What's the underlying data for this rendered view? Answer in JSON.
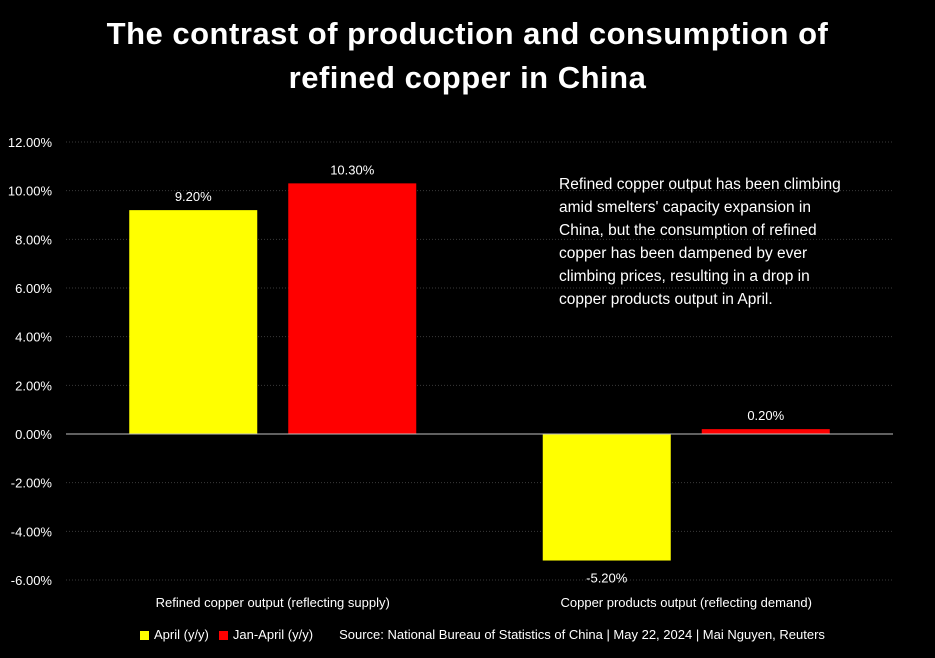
{
  "title_line1": "The contrast of production and consumption of",
  "title_line2": "refined copper in China",
  "annotation": "Refined copper output has been climbing amid smelters' capacity expansion in China, but the consumption of refined copper has been dampened by ever climbing prices, resulting in a drop in copper products output in April.",
  "source": "Source: National Bureau of Statistics of China  |  May 22, 2024  |  Mai Nguyen, Reuters",
  "chart_data": {
    "type": "bar",
    "title": "The contrast of production and consumption of refined copper in China",
    "categories": [
      "Refined copper output (reflecting supply)",
      "Copper products output (reflecting demand)"
    ],
    "series": [
      {
        "name": "April (y/y)",
        "color": "#FFFF00",
        "values": [
          9.2,
          -5.2
        ],
        "labels": [
          "9.20%",
          "-5.20%"
        ]
      },
      {
        "name": "Jan-April (y/y)",
        "color": "#FF0000",
        "values": [
          10.3,
          0.2
        ],
        "labels": [
          "10.30%",
          "0.20%"
        ]
      }
    ],
    "ylim": [
      -6,
      12
    ],
    "yticks": [
      12,
      10,
      8,
      6,
      4,
      2,
      0,
      -2,
      -4,
      -6
    ],
    "ytick_labels": [
      "12.00%",
      "10.00%",
      "8.00%",
      "6.00%",
      "4.00%",
      "2.00%",
      "0.00%",
      "-2.00%",
      "-4.00%",
      "-6.00%"
    ],
    "grid": true,
    "legend_position": "bottom-left",
    "xlabel": "",
    "ylabel": ""
  }
}
